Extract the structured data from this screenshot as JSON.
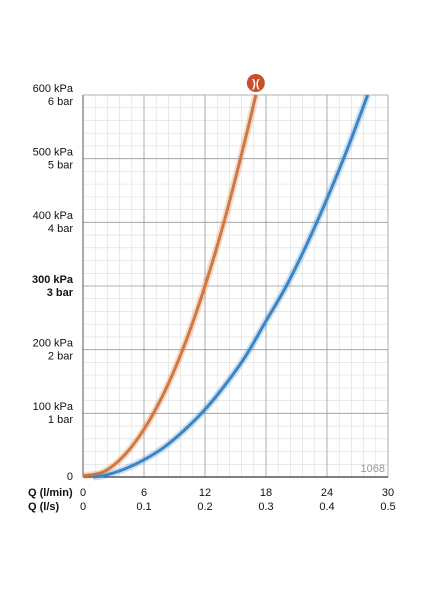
{
  "chart_data": {
    "type": "line",
    "xlabel": "Q (l/min)",
    "x2label": "Q (l/s)",
    "xlim": [
      0,
      30
    ],
    "xticks": [
      0,
      6,
      12,
      18,
      24,
      30
    ],
    "x2ticks": [
      0,
      {
        "value": 6,
        "label": "0.1"
      },
      {
        "value": 12,
        "label": "0.2"
      },
      {
        "value": 18,
        "label": "0.3"
      },
      {
        "value": 24,
        "label": "0.4"
      },
      {
        "value": 30,
        "label": "0.5"
      }
    ],
    "ylim": [
      0,
      600
    ],
    "yticks": [
      0,
      {
        "value": 100,
        "label": "100 kPa"
      },
      {
        "value": 200,
        "label": "200 kPa"
      },
      {
        "value": 300,
        "label": "300 kPa"
      },
      {
        "value": 400,
        "label": "400 kPa"
      },
      {
        "value": 500,
        "label": "500 kPa"
      },
      {
        "value": 600,
        "label": "600 kPa"
      }
    ],
    "yticks_bar": [
      {
        "value": 100,
        "label": "1 bar"
      },
      {
        "value": 200,
        "label": "2 bar"
      },
      {
        "value": 300,
        "label": "3 bar"
      },
      {
        "value": 400,
        "label": "4 bar"
      },
      {
        "value": 500,
        "label": "5 bar"
      },
      {
        "value": 600,
        "label": "6 bar"
      }
    ],
    "emphasized_ytick": 300,
    "grid": true,
    "minor_grid_divisions": 5,
    "annotation": "1068",
    "marker_label": ")(",
    "series": [
      {
        "color": "#d2773f",
        "x": [
          0,
          2,
          4,
          6,
          8,
          10,
          12,
          14,
          16,
          17
        ],
        "values": [
          2,
          8,
          33,
          75,
          133,
          208,
          300,
          408,
          533,
          600
        ]
      },
      {
        "color": "#3a85c6",
        "x": [
          1,
          2,
          4,
          6,
          8,
          10,
          12,
          14,
          16,
          18,
          20,
          22,
          24,
          26,
          28
        ],
        "values": [
          0,
          2,
          12,
          27,
          47,
          74,
          106,
          145,
          190,
          245,
          300,
          365,
          437,
          515,
          600
        ]
      }
    ]
  }
}
